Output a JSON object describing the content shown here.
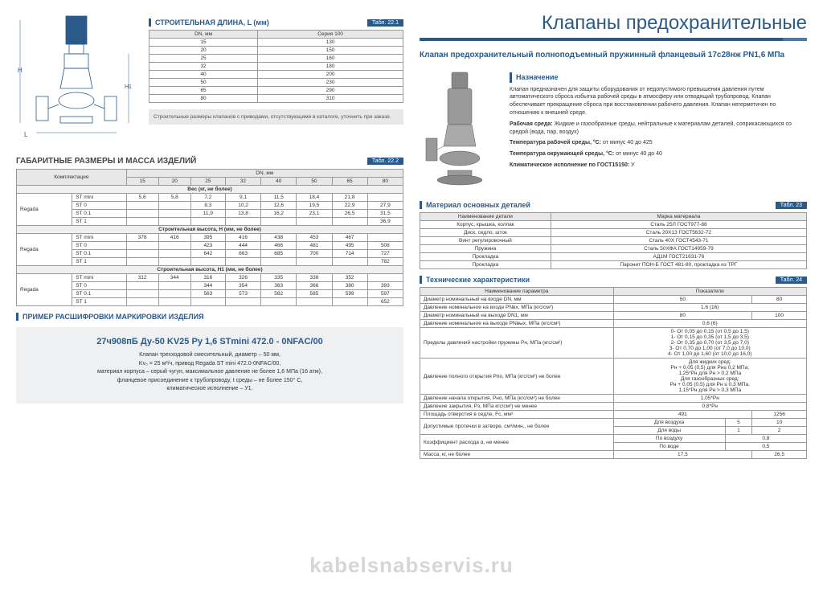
{
  "page_title": "Клапаны предохранительные",
  "left": {
    "dim_title": "СТРОИТЕЛЬНАЯ ДЛИНА, L (мм)",
    "dim_tab": "Табл. 22.1",
    "dim_cols": [
      "DN, мм",
      "Серия 100"
    ],
    "dim_rows": [
      [
        "15",
        "130"
      ],
      [
        "20",
        "150"
      ],
      [
        "25",
        "160"
      ],
      [
        "32",
        "180"
      ],
      [
        "40",
        "200"
      ],
      [
        "50",
        "230"
      ],
      [
        "65",
        "290"
      ],
      [
        "80",
        "310"
      ]
    ],
    "note": "Строительные размеры клапанов с приводами, отсутствующими в каталоге, уточнить при заказе.",
    "mass_title": "ГАБАРИТНЫЕ РАЗМЕРЫ И МАССА ИЗДЕЛИЙ",
    "mass_tab": "Табл. 22.2",
    "mass_header1": "Комплектация",
    "mass_header2": "DN, мм",
    "mass_dn": [
      "15",
      "20",
      "25",
      "32",
      "40",
      "50",
      "65",
      "80"
    ],
    "mass_sub1": "Вес (кг, не более)",
    "mass_r1": [
      [
        "Regada",
        "ST mini",
        "5,6",
        "5,8",
        "7,2",
        "9,1",
        "11,5",
        "18,4",
        "21,8",
        ""
      ],
      [
        "",
        "ST 0",
        "",
        "",
        "8,3",
        "10,2",
        "12,6",
        "19,5",
        "22,9",
        "27,9"
      ],
      [
        "",
        "ST 0.1",
        "",
        "",
        "11,9",
        "13,8",
        "16,2",
        "23,1",
        "26,5",
        "31,5"
      ],
      [
        "",
        "ST 1",
        "",
        "",
        "",
        "",
        "",
        "",
        "",
        "36,9"
      ]
    ],
    "mass_sub2": "Строительная высота, H (мм, не более)",
    "mass_r2": [
      [
        "Regada",
        "ST mini",
        "378",
        "416",
        "395",
        "416",
        "438",
        "453",
        "467",
        ""
      ],
      [
        "",
        "ST 0",
        "",
        "",
        "423",
        "444",
        "466",
        "481",
        "495",
        "508"
      ],
      [
        "",
        "ST 0.1",
        "",
        "",
        "642",
        "663",
        "685",
        "700",
        "714",
        "727"
      ],
      [
        "",
        "ST 1",
        "",
        "",
        "",
        "",
        "",
        "",
        "",
        "782"
      ]
    ],
    "mass_sub3": "Строительная высота, H1 (мм, не более)",
    "mass_r3": [
      [
        "Regada",
        "ST mini",
        "312",
        "344",
        "316",
        "326",
        "335",
        "338",
        "352",
        ""
      ],
      [
        "",
        "ST 0",
        "",
        "",
        "344",
        "354",
        "363",
        "366",
        "380",
        "393"
      ],
      [
        "",
        "ST 0.1",
        "",
        "",
        "563",
        "573",
        "582",
        "585",
        "599",
        "597"
      ],
      [
        "",
        "ST 1",
        "",
        "",
        "",
        "",
        "",
        "",
        "",
        "652"
      ]
    ],
    "mark_heading": "ПРИМЕР РАСШИФРОВКИ МАРКИРОВКИ ИЗДЕЛИЯ",
    "mark_code": "27ч908пБ Ду-50 KV25 Ру 1,6 STmini 472.0 - 0NFAC/00",
    "mark_lines": [
      "Клапан трехходовой смесительный, диаметр – 50 мм,",
      "Kv₅ = 25 м³/ч, привод Regada ST mini  472.0-0NFAC/00,",
      "материал корпуса – серый чугун, максимальное давление не более 1,6 МПа (16 атм),",
      "фланцевое присоединение к трубопроводу, t среды – не более 150° С,",
      "климатическое исполнение – У1."
    ]
  },
  "right": {
    "product": "Клапан предохранительный полноподъемный пружинный фланцевый 17с28нж PN1,6 МПа",
    "purpose_h": "Назначение",
    "purpose": "Клапан предназначен  для защиты оборудования от недопустимого превышения давления путем автоматического сброса избытка рабочей среды в атмосферу или отводящий трубопровод. Клапан обеспечивает прекращение сброса при восстановлении рабочего давления.  Клапан негерметичен по отношению к внешней среде.",
    "env_l1": "Рабочая  среда:",
    "env_v1": " Жидкие и газообразные среды, нейтральные к материалам деталей, соприкасающихся со средой (вода, пар, воздух)",
    "env_l2": "Температура рабочей среды, °С:",
    "env_v2": " от минус 40 до 425",
    "env_l3": "Температура окружающей среды, °С:",
    "env_v3": " от минус 40 до 40",
    "env_l4": "Климатическое исполнение по ГОСТ15150:",
    "env_v4": " У",
    "mat_h": "Материал основных деталей",
    "mat_tab": "Табл. 23",
    "mat_cols": [
      "Наименование детали",
      "Марка материала"
    ],
    "mat_rows": [
      [
        "Корпус, крышка, колпак",
        "Сталь 25Л       ГОСТ977-88"
      ],
      [
        "Диск, седло, шток",
        "Сталь 20Х13  ГОСТ5632-72"
      ],
      [
        "Винт регулировочный",
        "Сталь 40Х ГОСТ4543-71"
      ],
      [
        "Пружина",
        "Сталь 50ХФА  ГОСТ14959-79"
      ],
      [
        "Прокладка",
        "АД1М  ГОСТ21631-76"
      ],
      [
        "Прокладка",
        "Паронит ПОН-Б ГОСТ 481-80, прокладка из ТРГ"
      ]
    ],
    "tech_h": "Технические характеристики",
    "tech_tab": "Табл. 24",
    "tech_c1": "Наименование параметра",
    "tech_c2": "Показатели",
    "tech_rows": [
      {
        "p": "Диаметр номинальный на входе DN, мм",
        "v": [
          "50",
          "80"
        ],
        "span": 1
      },
      {
        "p": "Давление номинальное на входе PNвх, МПа (кгс/см²)",
        "v": [
          "1,6 (16)"
        ],
        "span": 2
      },
      {
        "p": "Диаметр номинальный на выходе DN1, мм",
        "v": [
          "80",
          "100"
        ],
        "span": 1
      },
      {
        "p": "Давление номинальное на выходе PNвых, МПа (кгс/см²)",
        "v": [
          "0,6 (6)"
        ],
        "span": 2
      }
    ],
    "spring_p": "Пределы давлений настройки пружины  Рн, МПа (кгс/см²)",
    "spring_v": "0- От 0,05 до 0,15 (от 0,5 до 1,5)\n1- От 0,15 до 0,35 (от 1,5 до 3,5)\n2- От 0,35 до 0,70 (от 3,5 до 7,0)\n3- От 0,70 до 1,00 (от 7,0 до 10,0)\n4- От 1,00 до 1,60 (от 10,0 до 16,0)",
    "open_p": "Давление полного открытия Рпо, МПа (кгс/см²)  не более",
    "open_v": "Для жидких сред:\nРн + 0,05 (0,5) для Рн≤ 0,2 МПа;\n1,25*Рн для Рн > 0,2 МПа\nДля газообразных сред:\nРн + 0,05 (0,5) для Рн ≤ 0,3 МПа,\n1,15*Рн для Рн > 0,3 МПа",
    "start_p": "Давление начала открытия, Рно, МПа  (кгс/см²)  не более",
    "start_v": "1,05*Рн",
    "close_p": "Давление закрытия,  Рз, МПа  кгс/см²)  не менее",
    "close_v": "0,8*Рн",
    "area_p": "Площадь отверстия в седле, Fс, мм²",
    "area_v": [
      "491",
      "1256"
    ],
    "leak_p": "Допустимые протечки в затворе, см³/мин., не более",
    "leak_r": [
      [
        "Для воздуха",
        "5",
        "10"
      ],
      [
        "Для воды",
        "1",
        "2"
      ]
    ],
    "coef_p": "Коэффициент расхода α, не менее",
    "coef_r": [
      [
        "По воздуху",
        "0,8"
      ],
      [
        "По воде",
        "0,5"
      ]
    ],
    "mass_p": "Масса, кг, не более",
    "mass_v": [
      "17,5",
      "26,5"
    ]
  },
  "watermark": "kabelsnabservis.ru"
}
